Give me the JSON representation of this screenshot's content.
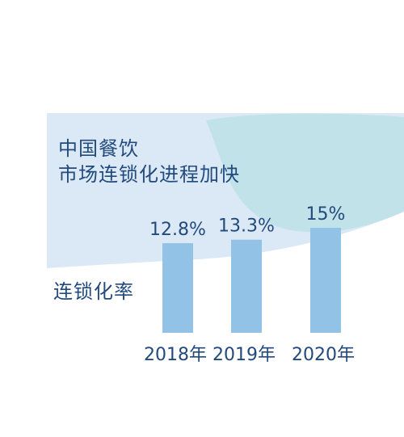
{
  "header": {
    "title_line1": "中国餐饮",
    "title_line2": "市场连锁化进程加快"
  },
  "colors": {
    "panel": "#dbe9f6",
    "panel_accent": "#c2e2ea",
    "bar": "#93c2e7",
    "text": "#234a7d"
  },
  "chart_data": {
    "type": "bar",
    "title": "中国餐饮 市场连锁化进程加快",
    "series": [
      {
        "name": "连锁化率",
        "values": [
          12.8,
          13.3,
          15
        ],
        "labels": [
          "12.8%",
          "13.3%",
          "15%"
        ]
      }
    ],
    "categories": [
      "2018年",
      "2019年",
      "2020年"
    ],
    "xlabel": "",
    "ylabel": "",
    "ylim": [
      0,
      15
    ],
    "grid": false,
    "legend": "none"
  }
}
